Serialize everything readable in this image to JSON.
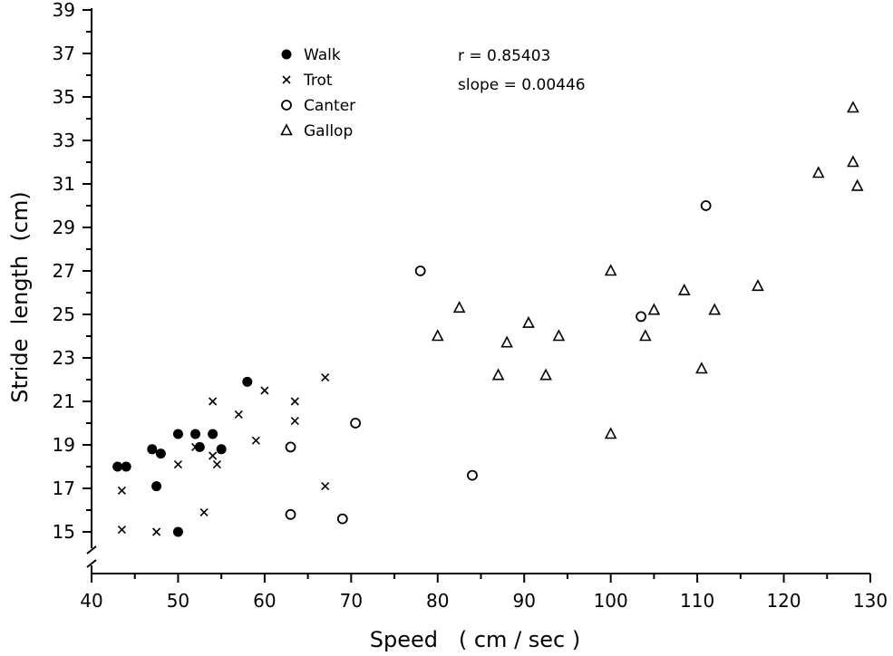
{
  "chart_data": {
    "type": "scatter",
    "title": "",
    "xlabel": "Speed   ( cm / sec )",
    "ylabel": "Stride  length  (cm)",
    "xlim": [
      40,
      130
    ],
    "ylim": [
      13,
      39
    ],
    "xticks": [
      40,
      50,
      60,
      70,
      80,
      90,
      100,
      110,
      120,
      130
    ],
    "yticks": [
      15,
      17,
      19,
      21,
      23,
      25,
      27,
      29,
      31,
      33,
      35,
      37,
      39
    ],
    "y_axis_break": true,
    "grid": false,
    "legend_position": "top-left",
    "stats": {
      "r": "r = 0.85403",
      "slope": "slope = 0.00446"
    },
    "series": [
      {
        "name": "Walk",
        "marker": "filled-circle",
        "points": [
          [
            43,
            18
          ],
          [
            44,
            18
          ],
          [
            47,
            18.8
          ],
          [
            47.5,
            17.1
          ],
          [
            48,
            18.6
          ],
          [
            50,
            19.5
          ],
          [
            50,
            15
          ],
          [
            52,
            19.5
          ],
          [
            52.5,
            18.9
          ],
          [
            54,
            19.5
          ],
          [
            55,
            18.8
          ],
          [
            58,
            21.9
          ]
        ]
      },
      {
        "name": "Trot",
        "marker": "x",
        "points": [
          [
            43.5,
            16.9
          ],
          [
            43.5,
            15.1
          ],
          [
            47.5,
            15.0
          ],
          [
            50,
            18.1
          ],
          [
            52,
            18.9
          ],
          [
            53,
            15.9
          ],
          [
            54,
            21.0
          ],
          [
            54,
            18.5
          ],
          [
            54.5,
            18.1
          ],
          [
            57,
            20.4
          ],
          [
            59,
            19.2
          ],
          [
            60,
            21.5
          ],
          [
            63.5,
            21.0
          ],
          [
            63.5,
            20.1
          ],
          [
            67,
            22.1
          ],
          [
            67,
            17.1
          ]
        ]
      },
      {
        "name": "Canter",
        "marker": "open-circle",
        "points": [
          [
            63,
            18.9
          ],
          [
            63,
            15.8
          ],
          [
            69,
            15.6
          ],
          [
            70.5,
            20.0
          ],
          [
            78,
            27.0
          ],
          [
            84,
            17.6
          ],
          [
            103.5,
            24.9
          ],
          [
            111,
            30.0
          ]
        ]
      },
      {
        "name": "Gallop",
        "marker": "triangle",
        "points": [
          [
            80,
            24.0
          ],
          [
            82.5,
            25.3
          ],
          [
            87,
            22.2
          ],
          [
            88,
            23.7
          ],
          [
            90.5,
            24.6
          ],
          [
            92.5,
            22.2
          ],
          [
            94,
            24.0
          ],
          [
            100,
            27.0
          ],
          [
            100,
            19.5
          ],
          [
            104,
            24.0
          ],
          [
            105,
            25.2
          ],
          [
            108.5,
            26.1
          ],
          [
            110.5,
            22.5
          ],
          [
            112,
            25.2
          ],
          [
            117,
            26.3
          ],
          [
            124,
            31.5
          ],
          [
            128,
            34.5
          ],
          [
            128,
            32.0
          ],
          [
            128.5,
            30.9
          ]
        ]
      }
    ]
  }
}
